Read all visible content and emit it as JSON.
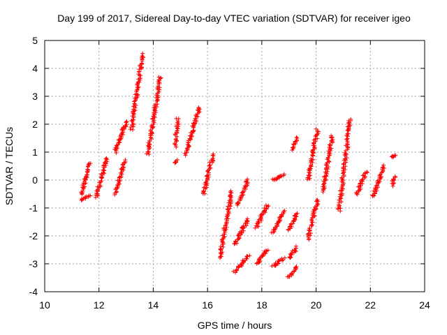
{
  "chart_data": {
    "type": "scatter",
    "title": "Day 199 of 2017, Sidereal Day-to-day VTEC variation (SDTVAR) for receiver igeo",
    "xlabel": "GPS time / hours",
    "ylabel": "SDTVAR / TECUs",
    "xlim": [
      10,
      24
    ],
    "ylim": [
      -4,
      5
    ],
    "xticks": [
      "10",
      "12",
      "14",
      "16",
      "18",
      "20",
      "22",
      "24"
    ],
    "yticks": [
      "-4",
      "-3",
      "-2",
      "-1",
      "0",
      "1",
      "2",
      "3",
      "4",
      "5"
    ],
    "grid": true,
    "marker": "plus",
    "color": "#ff0000",
    "series": [
      {
        "name": "SDTVAR",
        "segments": [
          {
            "x0": 11.35,
            "x1": 11.65,
            "y0": -0.5,
            "y1": 0.6
          },
          {
            "x0": 11.35,
            "x1": 11.65,
            "y0": -0.7,
            "y1": -0.55
          },
          {
            "x0": 11.9,
            "x1": 12.3,
            "y0": -0.6,
            "y1": 0.8
          },
          {
            "x0": 12.6,
            "x1": 12.95,
            "y0": -0.5,
            "y1": 0.7
          },
          {
            "x0": 12.6,
            "x1": 13.0,
            "y0": 1.0,
            "y1": 2.1
          },
          {
            "x0": 13.2,
            "x1": 13.6,
            "y0": 1.8,
            "y1": 4.5
          },
          {
            "x0": 13.8,
            "x1": 14.25,
            "y0": 0.9,
            "y1": 3.7
          },
          {
            "x0": 14.8,
            "x1": 14.9,
            "y0": 1.2,
            "y1": 2.2
          },
          {
            "x0": 14.8,
            "x1": 14.9,
            "y0": 0.6,
            "y1": 0.7
          },
          {
            "x0": 15.2,
            "x1": 15.7,
            "y0": 0.9,
            "y1": 2.6
          },
          {
            "x0": 15.85,
            "x1": 16.2,
            "y0": -0.5,
            "y1": 0.9
          },
          {
            "x0": 16.45,
            "x1": 16.9,
            "y0": -2.8,
            "y1": -0.4
          },
          {
            "x0": 17.0,
            "x1": 17.5,
            "y0": -3.3,
            "y1": -2.7
          },
          {
            "x0": 17.0,
            "x1": 17.5,
            "y0": -2.3,
            "y1": -1.4
          },
          {
            "x0": 17.1,
            "x1": 17.5,
            "y0": -0.9,
            "y1": 0.0
          },
          {
            "x0": 17.8,
            "x1": 18.2,
            "y0": -1.7,
            "y1": -0.9
          },
          {
            "x0": 17.8,
            "x1": 18.2,
            "y0": -3.0,
            "y1": -2.5
          },
          {
            "x0": 18.4,
            "x1": 18.8,
            "y0": -1.9,
            "y1": -1.1
          },
          {
            "x0": 18.4,
            "x1": 18.8,
            "y0": -3.1,
            "y1": -2.8
          },
          {
            "x0": 18.4,
            "x1": 18.8,
            "y0": 0.0,
            "y1": 0.2
          },
          {
            "x0": 19.0,
            "x1": 19.3,
            "y0": -3.5,
            "y1": -3.1
          },
          {
            "x0": 19.0,
            "x1": 19.3,
            "y0": -2.8,
            "y1": -2.4
          },
          {
            "x0": 19.0,
            "x1": 19.3,
            "y0": -1.8,
            "y1": -1.2
          },
          {
            "x0": 19.1,
            "x1": 19.3,
            "y0": 1.1,
            "y1": 1.5
          },
          {
            "x0": 19.7,
            "x1": 20.05,
            "y0": -2.1,
            "y1": -0.7
          },
          {
            "x0": 19.7,
            "x1": 20.05,
            "y0": 0.0,
            "y1": 1.8
          },
          {
            "x0": 20.25,
            "x1": 20.6,
            "y0": -0.4,
            "y1": 1.6
          },
          {
            "x0": 20.85,
            "x1": 21.25,
            "y0": -1.1,
            "y1": 2.2
          },
          {
            "x0": 21.5,
            "x1": 21.85,
            "y0": -0.5,
            "y1": 0.3
          },
          {
            "x0": 22.1,
            "x1": 22.5,
            "y0": -0.6,
            "y1": 0.5
          },
          {
            "x0": 22.8,
            "x1": 22.9,
            "y0": 0.8,
            "y1": 0.9
          },
          {
            "x0": 22.8,
            "x1": 22.9,
            "y0": -0.2,
            "y1": 0.1
          }
        ]
      }
    ]
  }
}
